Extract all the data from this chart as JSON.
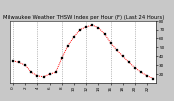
{
  "title": "Milwaukee Weather THSW Index per Hour (F) (Last 24 Hours)",
  "hours": [
    0,
    1,
    2,
    3,
    4,
    5,
    6,
    7,
    8,
    9,
    10,
    11,
    12,
    13,
    14,
    15,
    16,
    17,
    18,
    19,
    20,
    21,
    22,
    23
  ],
  "values": [
    35,
    33,
    30,
    22,
    18,
    17,
    20,
    22,
    38,
    52,
    62,
    70,
    73,
    75,
    72,
    65,
    55,
    47,
    40,
    33,
    27,
    22,
    18,
    15
  ],
  "line_color": "#ff0000",
  "marker_color": "#000000",
  "bg_color": "#c8c8c8",
  "plot_bg_color": "#ffffff",
  "grid_color": "#888888",
  "ylim": [
    10,
    80
  ],
  "yticks": [
    20,
    30,
    40,
    50,
    60,
    70,
    80
  ],
  "ytick_labels": [
    "20",
    "30",
    "40",
    "50",
    "60",
    "70",
    "80"
  ],
  "xtick_every": 2,
  "title_fontsize": 3.8,
  "tick_fontsize": 3.0,
  "line_width": 0.7,
  "marker_size": 1.5
}
